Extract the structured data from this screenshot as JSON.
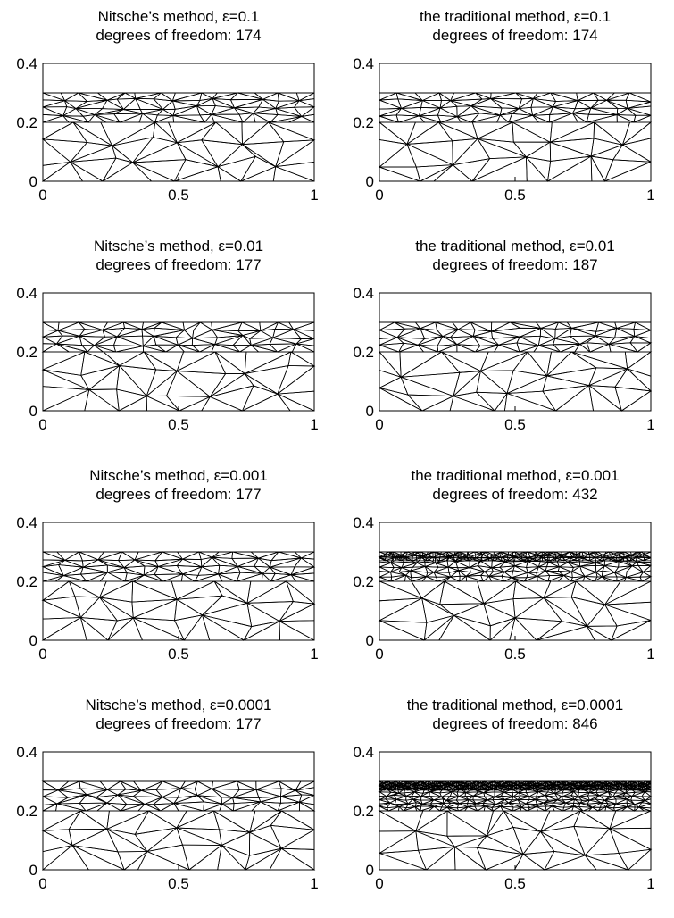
{
  "axes": {
    "x_ticks": [
      "0",
      "0.5",
      "1"
    ],
    "y_ticks": [
      "0",
      "0.2",
      "0.4"
    ],
    "x_range": [
      0,
      1
    ],
    "y_range": [
      0,
      0.4
    ],
    "interface_y": 0.3
  },
  "panels": [
    {
      "id": "nitsche-eps-0.1",
      "title": "Nitsche’s method,    ε=0.1",
      "subtitle": "degrees of freedom: 174",
      "refinement": 1
    },
    {
      "id": "traditional-eps-0.1",
      "title": "the traditional method, ε=0.1",
      "subtitle": "degrees of freedom: 174",
      "refinement": 1
    },
    {
      "id": "nitsche-eps-0.01",
      "title": "Nitsche’s method,    ε=0.01",
      "subtitle": "degrees of freedom: 177",
      "refinement": 1
    },
    {
      "id": "traditional-eps-0.01",
      "title": "the traditional method, ε=0.01",
      "subtitle": "degrees of freedom: 187",
      "refinement": 1
    },
    {
      "id": "nitsche-eps-0.001",
      "title": "Nitsche’s method,    ε=0.001",
      "subtitle": "degrees of freedom: 177",
      "refinement": 1
    },
    {
      "id": "traditional-eps-0.001",
      "title": "the traditional method, ε=0.001",
      "subtitle": "degrees of freedom: 432",
      "refinement": 3
    },
    {
      "id": "nitsche-eps-0.0001",
      "title": "Nitsche’s method,    ε=0.0001",
      "subtitle": "degrees of freedom: 177",
      "refinement": 1
    },
    {
      "id": "traditional-eps-0.0001",
      "title": "the traditional method, ε=0.0001",
      "subtitle": "degrees of freedom: 846",
      "refinement": 5
    }
  ]
}
